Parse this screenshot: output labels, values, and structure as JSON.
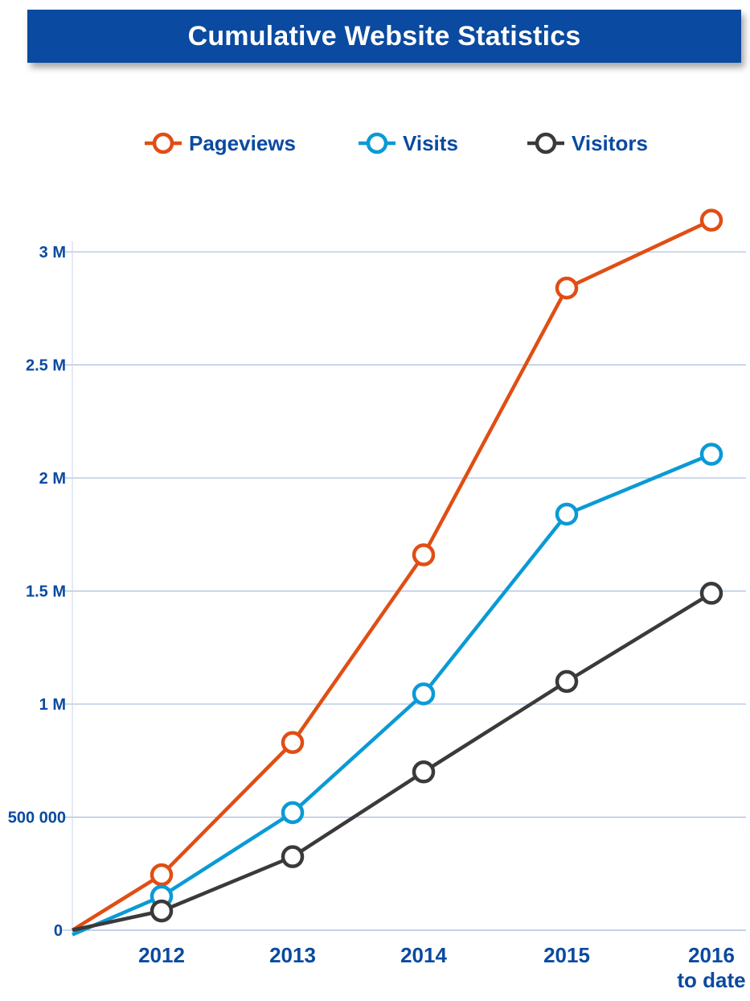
{
  "chart_data": {
    "type": "line",
    "title": "Cumulative Website Statistics",
    "xlabel": "",
    "ylabel": "",
    "ylim": [
      0,
      3150000
    ],
    "grid": true,
    "legend_position": "top",
    "categories": [
      "2012",
      "2013",
      "2014",
      "2015",
      "2016 to date"
    ],
    "category_lines": [
      [
        "2012"
      ],
      [
        "2013"
      ],
      [
        "2014"
      ],
      [
        "2015"
      ],
      [
        "2016",
        "to date"
      ]
    ],
    "y_ticks": [
      {
        "value": 0,
        "label": "0"
      },
      {
        "value": 500000,
        "label": "500 000"
      },
      {
        "value": 1000000,
        "label": "1 M"
      },
      {
        "value": 1500000,
        "label": "1.5 M"
      },
      {
        "value": 2000000,
        "label": "2 M"
      },
      {
        "value": 2500000,
        "label": "2.5 M"
      },
      {
        "value": 3000000,
        "label": "3 M"
      }
    ],
    "series": [
      {
        "name": "Pageviews",
        "color": "#e04e14",
        "origin": 0,
        "values": [
          245000,
          830000,
          1660000,
          2840000,
          3140000
        ]
      },
      {
        "name": "Visits",
        "color": "#0a9ad6",
        "origin": -20000,
        "values": [
          150000,
          520000,
          1045000,
          1840000,
          2105000
        ]
      },
      {
        "name": "Visitors",
        "color": "#3a3a3a",
        "origin": 0,
        "values": [
          85000,
          325000,
          700000,
          1100000,
          1490000
        ]
      }
    ]
  }
}
